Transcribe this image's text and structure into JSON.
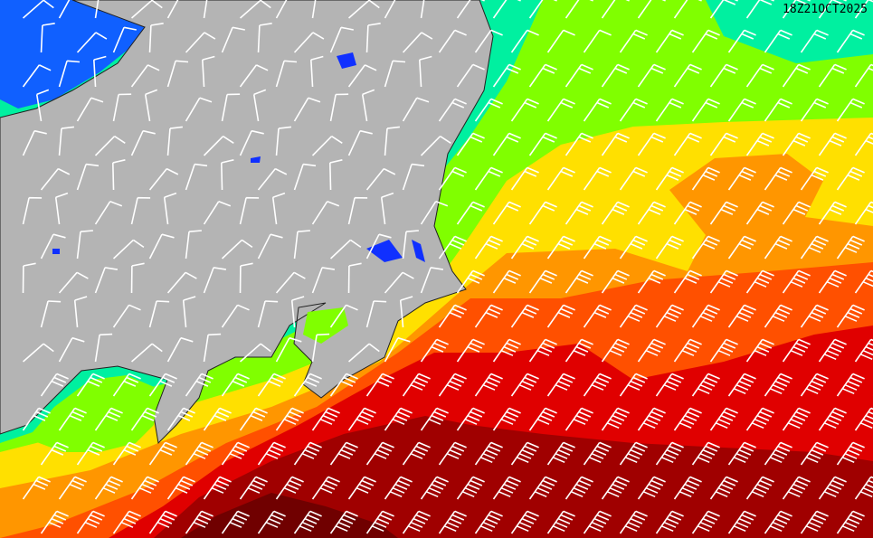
{
  "timestamp": "18Z21OCT2025",
  "colors": {
    "land": "#b4b4b4",
    "lake": "#1030ff",
    "barb": "#ffffff",
    "border": "#202020",
    "speed_levels": [
      "#1060ff",
      "#00f0a0",
      "#80ff00",
      "#ffe000",
      "#ff9600",
      "#ff5000",
      "#e00000",
      "#a00000",
      "#700000"
    ]
  }
}
